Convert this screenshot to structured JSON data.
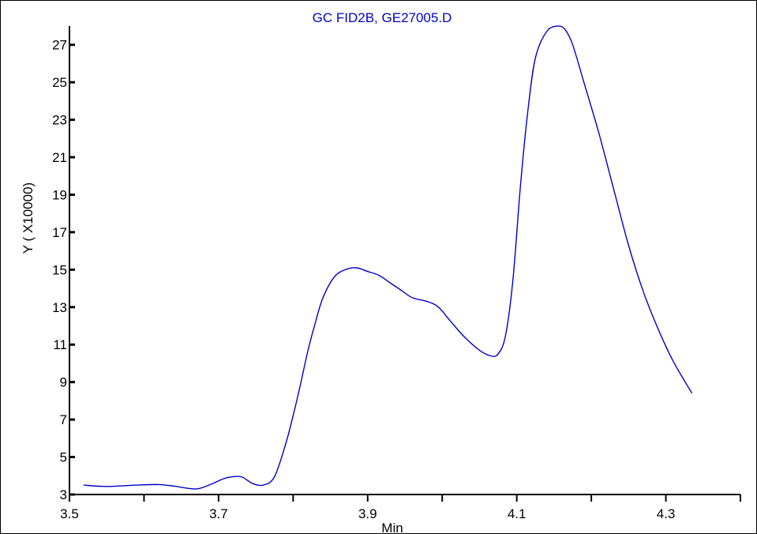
{
  "chart_data": {
    "type": "line",
    "title": "GC FID2B, GE27005.D",
    "xlabel": "Min",
    "ylabel": "Y ( X10000)",
    "xlim": [
      3.5,
      4.4
    ],
    "ylim": [
      3,
      28
    ],
    "x_ticks": [
      3.5,
      3.7,
      3.9,
      4.1,
      4.3
    ],
    "x_tick_labels": [
      "3.5",
      "3.7",
      "3.9",
      "4.1",
      "4.3"
    ],
    "y_ticks": [
      3,
      5,
      7,
      9,
      11,
      13,
      15,
      17,
      19,
      21,
      23,
      25,
      27
    ],
    "y_tick_labels": [
      "3",
      "5",
      "7",
      "9",
      "11",
      "13",
      "15",
      "17",
      "19",
      "21",
      "23",
      "25",
      "27"
    ],
    "grid": false,
    "colors": {
      "series": "#0000cc",
      "title": "#0000cc",
      "axis": "#000000"
    },
    "series": [
      {
        "x": [
          3.519,
          3.55,
          3.59,
          3.62,
          3.64,
          3.67,
          3.69,
          3.71,
          3.73,
          3.745,
          3.76,
          3.775,
          3.79,
          3.8,
          3.81,
          3.82,
          3.83,
          3.84,
          3.855,
          3.87,
          3.885,
          3.9,
          3.915,
          3.93,
          3.945,
          3.96,
          3.98,
          3.995,
          4.01,
          4.03,
          4.05,
          4.065,
          4.075,
          4.085,
          4.095,
          4.105,
          4.115,
          4.125,
          4.14,
          4.155,
          4.165,
          4.175,
          4.19,
          4.21,
          4.23,
          4.25,
          4.27,
          4.29,
          4.31,
          4.335
        ],
        "y": [
          3.5,
          3.43,
          3.5,
          3.53,
          3.45,
          3.3,
          3.55,
          3.88,
          3.95,
          3.6,
          3.5,
          3.95,
          5.7,
          7.2,
          8.9,
          10.7,
          12.2,
          13.5,
          14.6,
          15.0,
          15.1,
          14.9,
          14.7,
          14.3,
          13.9,
          13.5,
          13.3,
          13.0,
          12.3,
          11.4,
          10.7,
          10.4,
          10.5,
          11.5,
          14.5,
          19.5,
          23.5,
          26.3,
          27.7,
          28.0,
          27.8,
          27.0,
          25.0,
          22.3,
          19.3,
          16.3,
          13.8,
          11.8,
          10.1,
          8.4
        ]
      }
    ]
  }
}
